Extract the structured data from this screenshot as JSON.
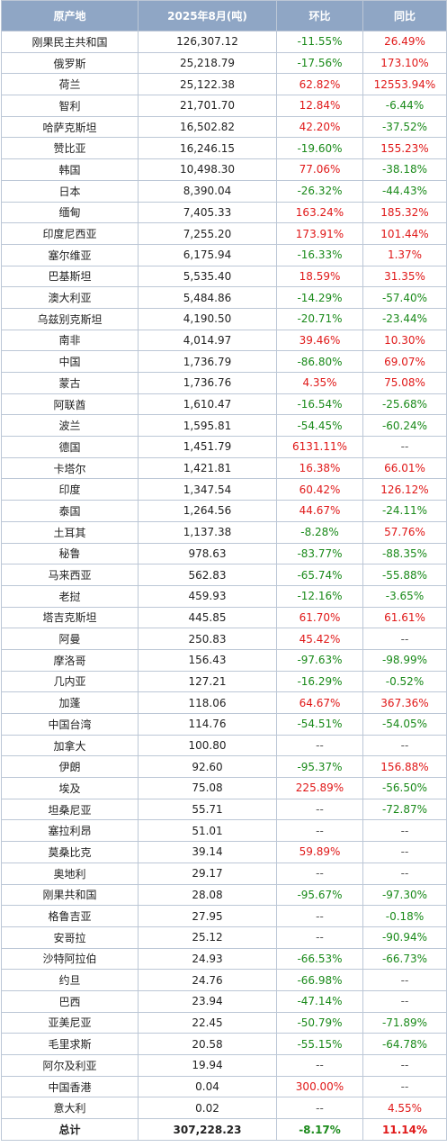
{
  "colors": {
    "header_bg": "#8fa6c5",
    "header_text": "#ffffff",
    "border": "#bcc7d6",
    "increase": "#e01818",
    "decrease": "#1a8a1a"
  },
  "header": [
    "原产地",
    "2025年8月(吨)",
    "环比",
    "同比"
  ],
  "rows": [
    [
      "刚果民主共和国",
      "126,307.12",
      "-11.55%",
      "26.49%"
    ],
    [
      "俄罗斯",
      "25,218.79",
      "-17.56%",
      "173.10%"
    ],
    [
      "荷兰",
      "25,122.38",
      "62.82%",
      "12553.94%"
    ],
    [
      "智利",
      "21,701.70",
      "12.84%",
      "-6.44%"
    ],
    [
      "哈萨克斯坦",
      "16,502.82",
      "42.20%",
      "-37.52%"
    ],
    [
      "赞比亚",
      "16,246.15",
      "-19.60%",
      "155.23%"
    ],
    [
      "韩国",
      "10,498.30",
      "77.06%",
      "-38.18%"
    ],
    [
      "日本",
      "8,390.04",
      "-26.32%",
      "-44.43%"
    ],
    [
      "缅甸",
      "7,405.33",
      "163.24%",
      "185.32%"
    ],
    [
      "印度尼西亚",
      "7,255.20",
      "173.91%",
      "101.44%"
    ],
    [
      "塞尔维亚",
      "6,175.94",
      "-16.33%",
      "1.37%"
    ],
    [
      "巴基斯坦",
      "5,535.40",
      "18.59%",
      "31.35%"
    ],
    [
      "澳大利亚",
      "5,484.86",
      "-14.29%",
      "-57.40%"
    ],
    [
      "乌兹别克斯坦",
      "4,190.50",
      "-20.71%",
      "-23.44%"
    ],
    [
      "南非",
      "4,014.97",
      "39.46%",
      "10.30%"
    ],
    [
      "中国",
      "1,736.79",
      "-86.80%",
      "69.07%"
    ],
    [
      "蒙古",
      "1,736.76",
      "4.35%",
      "75.08%"
    ],
    [
      "阿联酋",
      "1,610.47",
      "-16.54%",
      "-25.68%"
    ],
    [
      "波兰",
      "1,595.81",
      "-54.45%",
      "-60.24%"
    ],
    [
      "德国",
      "1,451.79",
      "6131.11%",
      "--"
    ],
    [
      "卡塔尔",
      "1,421.81",
      "16.38%",
      "66.01%"
    ],
    [
      "印度",
      "1,347.54",
      "60.42%",
      "126.12%"
    ],
    [
      "泰国",
      "1,264.56",
      "44.67%",
      "-24.11%"
    ],
    [
      "土耳其",
      "1,137.38",
      "-8.28%",
      "57.76%"
    ],
    [
      "秘鲁",
      "978.63",
      "-83.77%",
      "-88.35%"
    ],
    [
      "马来西亚",
      "562.83",
      "-65.74%",
      "-55.88%"
    ],
    [
      "老挝",
      "459.93",
      "-12.16%",
      "-3.65%"
    ],
    [
      "塔吉克斯坦",
      "445.85",
      "61.70%",
      "61.61%"
    ],
    [
      "阿曼",
      "250.83",
      "45.42%",
      "--"
    ],
    [
      "摩洛哥",
      "156.43",
      "-97.63%",
      "-98.99%"
    ],
    [
      "几内亚",
      "127.21",
      "-16.29%",
      "-0.52%"
    ],
    [
      "加蓬",
      "118.06",
      "64.67%",
      "367.36%"
    ],
    [
      "中国台湾",
      "114.76",
      "-54.51%",
      "-54.05%"
    ],
    [
      "加拿大",
      "100.80",
      "--",
      "--"
    ],
    [
      "伊朗",
      "92.60",
      "-95.37%",
      "156.88%"
    ],
    [
      "埃及",
      "75.08",
      "225.89%",
      "-56.50%"
    ],
    [
      "坦桑尼亚",
      "55.71",
      "--",
      "-72.87%"
    ],
    [
      "塞拉利昂",
      "51.01",
      "--",
      "--"
    ],
    [
      "莫桑比克",
      "39.14",
      "59.89%",
      "--"
    ],
    [
      "奥地利",
      "29.17",
      "--",
      "--"
    ],
    [
      "刚果共和国",
      "28.08",
      "-95.67%",
      "-97.30%"
    ],
    [
      "格鲁吉亚",
      "27.95",
      "--",
      "-0.18%"
    ],
    [
      "安哥拉",
      "25.12",
      "--",
      "-90.94%"
    ],
    [
      "沙特阿拉伯",
      "24.93",
      "-66.53%",
      "-66.73%"
    ],
    [
      "约旦",
      "24.76",
      "-66.98%",
      "--"
    ],
    [
      "巴西",
      "23.94",
      "-47.14%",
      "--"
    ],
    [
      "亚美尼亚",
      "22.45",
      "-50.79%",
      "-71.89%"
    ],
    [
      "毛里求斯",
      "20.58",
      "-55.15%",
      "-64.78%"
    ],
    [
      "阿尔及利亚",
      "19.94",
      "--",
      "--"
    ],
    [
      "中国香港",
      "0.04",
      "300.00%",
      "--"
    ],
    [
      "意大利",
      "0.02",
      "--",
      "4.55%"
    ]
  ],
  "total": [
    "总计",
    "307,228.23",
    "-8.17%",
    "11.14%"
  ]
}
